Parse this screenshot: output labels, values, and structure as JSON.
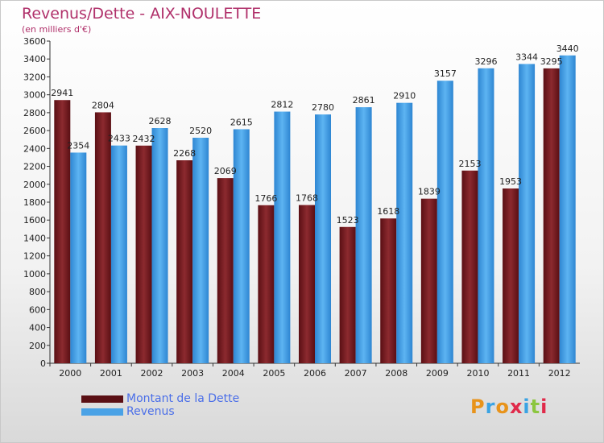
{
  "logo": "Proxiti",
  "chart_data": {
    "type": "bar",
    "title": "Revenus/Dette - AIX-NOULETTE",
    "subtitle": "(en milliers d'€)",
    "categories": [
      "2000",
      "2001",
      "2002",
      "2003",
      "2004",
      "2005",
      "2006",
      "2007",
      "2008",
      "2009",
      "2010",
      "2011",
      "2012"
    ],
    "series": [
      {
        "name": "Montant de la Dette",
        "color": "#7a1f24",
        "values": [
          2941,
          2804,
          2432,
          2268,
          2069,
          1766,
          1768,
          1523,
          1618,
          1839,
          2153,
          1953,
          3295
        ]
      },
      {
        "name": "Revenus",
        "color": "#4aa2e6",
        "values": [
          2354,
          2433,
          2628,
          2520,
          2615,
          2812,
          2780,
          2861,
          2910,
          3157,
          3296,
          3344,
          3440
        ]
      }
    ],
    "ylim": [
      0,
      3600
    ],
    "yticks": [
      0,
      200,
      400,
      600,
      800,
      1000,
      1200,
      1400,
      1600,
      1800,
      2000,
      2200,
      2400,
      2600,
      2800,
      3000,
      3200,
      3400,
      3600
    ],
    "legend_position": "bottom-left",
    "grid": false
  }
}
